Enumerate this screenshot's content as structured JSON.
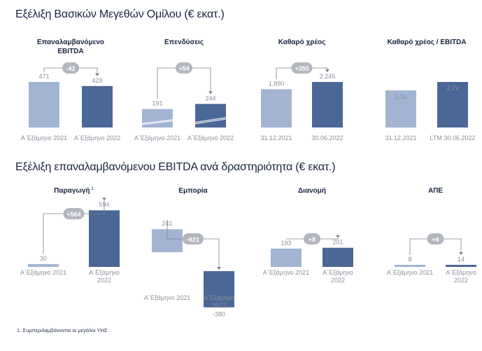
{
  "section1": {
    "title": "Εξέλιξη Βασικών Μεγεθών Ομίλου (€ εκατ.)"
  },
  "section2": {
    "title": "Εξέλιξη επαναλαμβανόμενου EBITDA ανά δραστηριότητα  (€ εκατ.)"
  },
  "footnote": "1. Συμπεριλαμβάνονται οι μεγάλοι ΥΗΣ",
  "colors": {
    "light": "#a3b4d3",
    "dark": "#4b6796",
    "badge": "#b3b6be",
    "text": "#1a2440",
    "muted": "#8a8f9a"
  },
  "chart_data": [
    {
      "type": "bar",
      "title": "Επαναλαμβανόμενο EBITDA",
      "categories": [
        "Α΄Εξάμηνο 2021",
        "Α΄Εξάμηνο 2022"
      ],
      "values": [
        471,
        429
      ],
      "value_labels": [
        "471",
        "429"
      ],
      "change_label": "-42",
      "ylim": [
        0,
        471
      ]
    },
    {
      "type": "bar",
      "title": "Επενδύσεις",
      "categories": [
        "Α΄Εξάμηνο 2021",
        "Α΄Εξάμηνο 2022"
      ],
      "values": [
        191,
        244
      ],
      "value_labels": [
        "191",
        "244"
      ],
      "change_label": "+54",
      "ylim": [
        0,
        471
      ]
    },
    {
      "type": "bar",
      "title": "Καθαρό χρέος",
      "categories": [
        "31.12.2021",
        "30.06.2022"
      ],
      "values": [
        1890,
        2245
      ],
      "value_labels": [
        "1.890",
        "2.245"
      ],
      "change_label": "+355",
      "ylim": [
        0,
        2245
      ]
    },
    {
      "type": "bar",
      "title": "Καθαρό χρέος / EBITDA",
      "categories": [
        "31.12.2021",
        "LTM 30.06.2022"
      ],
      "values": [
        2.2,
        2.7
      ],
      "value_labels": [
        "2,2x",
        "2,7x"
      ],
      "change_label": "",
      "ylim": [
        0,
        2.7
      ]
    },
    {
      "type": "bar",
      "title": "Παραγωγή",
      "title_superscript": "1",
      "categories": [
        "Α΄Εξάμηνο 2021",
        "Α΄Εξάμηνο 2022"
      ],
      "values": [
        30,
        594
      ],
      "value_labels": [
        "30",
        "594"
      ],
      "change_label": "+564",
      "ylim": [
        -380,
        594
      ]
    },
    {
      "type": "bar",
      "title": "Εμπορία",
      "categories": [
        "Α΄Εξάμηνο 2021",
        "Α΄Εξάμηνο 2022"
      ],
      "values": [
        241,
        -380
      ],
      "value_labels": [
        "241",
        "-380"
      ],
      "change_label": "-621",
      "ylim": [
        -380,
        594
      ]
    },
    {
      "type": "bar",
      "title": "Διανομή",
      "categories": [
        "Α΄Εξάμηνο 2021",
        "Α΄Εξάμηνο 2022"
      ],
      "values": [
        193,
        201
      ],
      "value_labels": [
        "193",
        "201"
      ],
      "change_label": "+8",
      "ylim": [
        -380,
        594
      ]
    },
    {
      "type": "bar",
      "title": "ΑΠΕ",
      "categories": [
        "Α΄Εξάμηνο 2021",
        "Α΄Εξάμηνο 2022"
      ],
      "values": [
        8,
        14
      ],
      "value_labels": [
        "8",
        "14"
      ],
      "change_label": "+6",
      "ylim": [
        -380,
        594
      ]
    }
  ]
}
